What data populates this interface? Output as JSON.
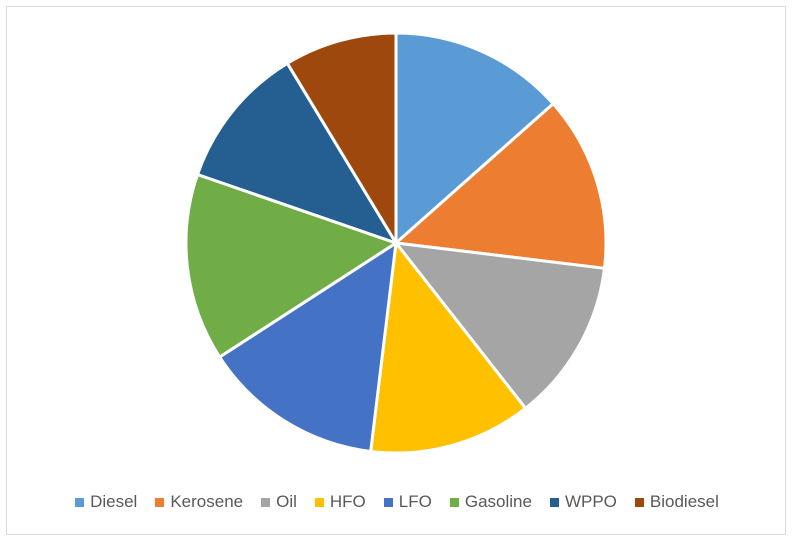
{
  "chart_data": {
    "type": "pie",
    "title": "",
    "categories": [
      "Diesel",
      "Kerosene",
      "Oil",
      "HFO",
      "LFO",
      "Gasoline",
      "WPPO",
      "Biodiesel"
    ],
    "values": [
      14,
      14,
      13,
      13,
      14.5,
      15,
      11.5,
      9
    ],
    "colors": [
      "#5b9bd5",
      "#ed7d31",
      "#a5a5a5",
      "#ffc000",
      "#4472c4",
      "#70ad47",
      "#255e91",
      "#9e480e"
    ],
    "legend_position": "bottom"
  }
}
